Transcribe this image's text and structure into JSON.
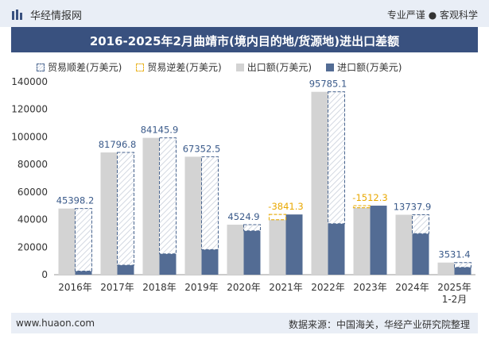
{
  "header": {
    "brand": "华经情报网",
    "tagline": "专业严谨 ● 客观科学",
    "colors": {
      "bar_bg": "#e9eef6",
      "title_bg": "#39517f"
    }
  },
  "footer": {
    "left": "www.huaon.com",
    "right": "数据来源：中国海关，华经产业研究院整理"
  },
  "chart_data": {
    "type": "bar",
    "title": "2016-2025年2月曲靖市(境内目的地/货源地)进出口差额",
    "legend": [
      "贸易顺差(万美元)",
      "贸易逆差(万美元)",
      "出口额(万美元)",
      "进口额(万美元)"
    ],
    "legend_position": "top",
    "categories": [
      "2016年",
      "2017年",
      "2018年",
      "2019年",
      "2020年",
      "2021年",
      "2022年",
      "2023年",
      "2024年",
      "2025年\n1-2月"
    ],
    "ylim": [
      0,
      140000
    ],
    "yticks": [
      0,
      20000,
      40000,
      60000,
      80000,
      100000,
      120000,
      140000
    ],
    "series": [
      {
        "name": "出口额(万美元)",
        "color": "#d3d3d3",
        "values": [
          48000,
          88700,
          99300,
          85600,
          36300,
          39900,
          132700,
          48600,
          43500,
          8800
        ]
      },
      {
        "name": "进口额(万美元)",
        "color": "#536c94",
        "values": [
          2600,
          6900,
          15100,
          18200,
          31800,
          43700,
          37000,
          50100,
          29800,
          5300
        ]
      }
    ],
    "balance": [
      45398.2,
      81796.8,
      84145.9,
      67352.5,
      4524.9,
      -3841.3,
      95785.1,
      -1512.3,
      13737.9,
      3531.4
    ],
    "balance_labels": [
      "45398.2",
      "81796.8",
      "84145.9",
      "67352.5",
      "4524.9",
      "-3841.3",
      "95785.1",
      "-1512.3",
      "13737.9",
      "3531.4"
    ],
    "colors": {
      "surplus_label": "#3a5a8a",
      "deficit_label": "#e9a800",
      "surplus_border": "#4a6690",
      "deficit_border": "#e9b21c"
    }
  }
}
